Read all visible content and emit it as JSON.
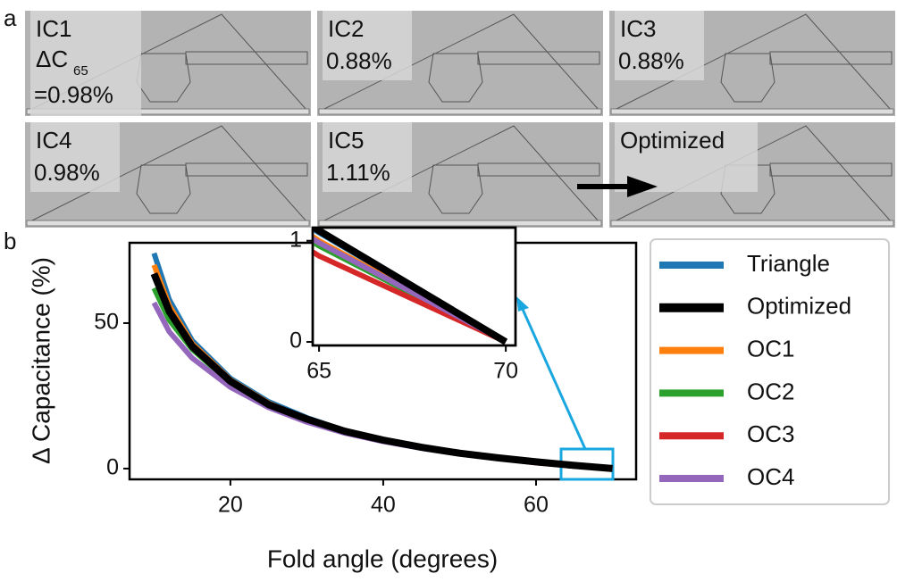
{
  "panel_labels": [
    "a",
    "b"
  ],
  "tiles": [
    {
      "label": "IC1",
      "metric": "ΔC",
      "subscript": "65",
      "value": "=0.98%"
    },
    {
      "label": "IC2",
      "value": "0.88%"
    },
    {
      "label": "IC3",
      "value": "0.88%"
    },
    {
      "label": "IC4",
      "value": "0.98%"
    },
    {
      "label": "IC5",
      "value": "1.11%"
    },
    {
      "label": "Optimized"
    }
  ],
  "chart_data": {
    "type": "line",
    "xlabel": "Fold angle (degrees)",
    "ylabel": "Δ Capacitance (%)",
    "x": [
      10,
      12,
      15,
      20,
      25,
      30,
      35,
      40,
      45,
      50,
      55,
      60,
      65,
      70
    ],
    "series": [
      {
        "name": "Triangle",
        "color": "#1f77b4",
        "linewidth": 6,
        "values": [
          74,
          58,
          44,
          31,
          23,
          17.5,
          13,
          10,
          7.5,
          5.5,
          3.8,
          2.3,
          1.08,
          0
        ]
      },
      {
        "name": "Optimized",
        "color": "#000000",
        "linewidth": 8,
        "values": [
          67,
          54,
          42,
          30,
          22,
          17,
          12.8,
          9.8,
          7.3,
          5.3,
          3.7,
          2.3,
          1.1,
          0
        ]
      },
      {
        "name": "OC1",
        "color": "#ff7f0e",
        "linewidth": 6,
        "values": [
          70,
          56,
          43,
          30.5,
          22.5,
          17,
          12.8,
          9.8,
          7.3,
          5.3,
          3.7,
          2.2,
          1.0,
          0
        ]
      },
      {
        "name": "OC2",
        "color": "#2ca02c",
        "linewidth": 6,
        "values": [
          62,
          51,
          41,
          29.5,
          22,
          16.8,
          12.6,
          9.6,
          7.1,
          5.2,
          3.6,
          2.1,
          0.95,
          0
        ]
      },
      {
        "name": "OC3",
        "color": "#d62728",
        "linewidth": 6,
        "values": [
          67,
          54,
          42,
          30,
          22,
          16.8,
          12.6,
          9.6,
          7.1,
          5.1,
          3.5,
          2.0,
          0.85,
          0
        ]
      },
      {
        "name": "OC4",
        "color": "#9467bd",
        "linewidth": 6,
        "values": [
          57,
          47,
          38,
          28,
          21,
          16,
          12.2,
          9.3,
          7,
          5,
          3.5,
          2.1,
          0.98,
          0
        ]
      }
    ],
    "xlim": [
      6.8,
      73.1
    ],
    "ylim": [
      -3.7,
      77.6
    ],
    "xticks": [
      20,
      40,
      60
    ],
    "yticks": [
      0,
      50
    ],
    "legend": "outside right",
    "inset": {
      "xlim": [
        64.83,
        70.26
      ],
      "ylim": [
        -0.035,
        1.13
      ],
      "xticks": [
        65,
        70
      ],
      "yticks": [
        0,
        1
      ]
    }
  }
}
